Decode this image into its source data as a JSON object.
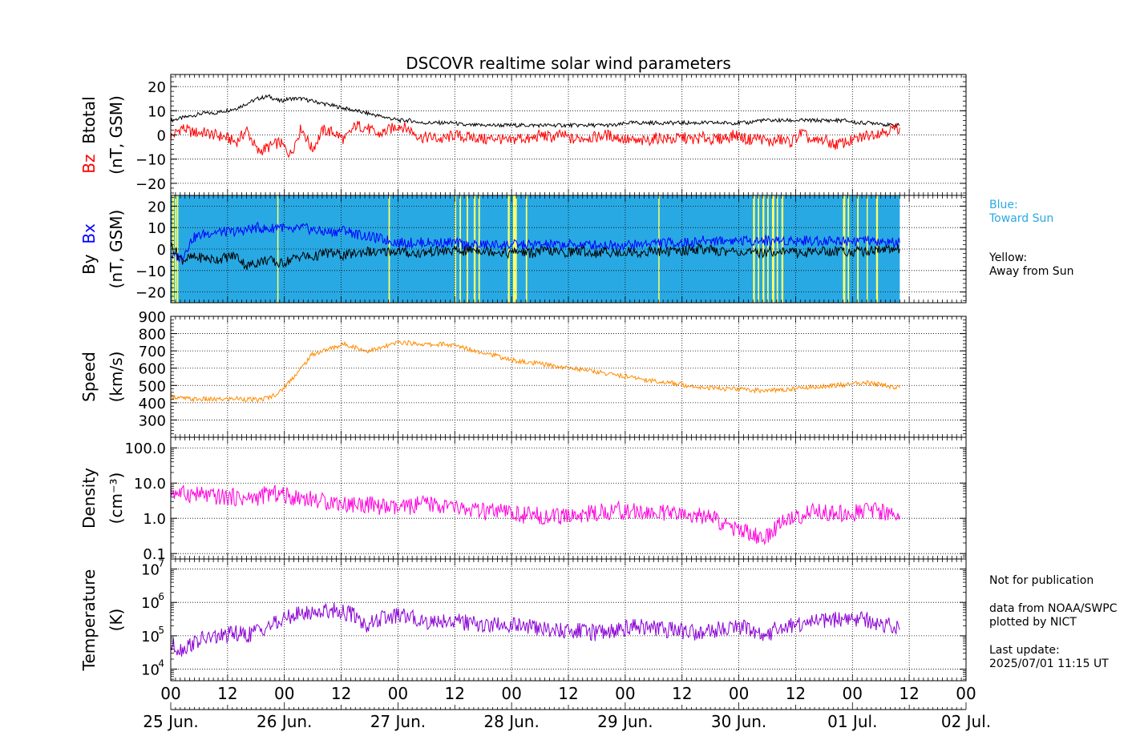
{
  "chart_data": {
    "type": "line",
    "title": "DSCOVR realtime solar wind parameters",
    "x_axis": {
      "start": "2025-06-25T00:00",
      "end": "2025-07-02T00:00",
      "hour_ticks": [
        "00",
        "12",
        "00",
        "12",
        "00",
        "12",
        "00",
        "12",
        "00",
        "12",
        "00",
        "12",
        "00",
        "12",
        "00"
      ],
      "day_labels": [
        "25 Jun.",
        "26 Jun.",
        "27 Jun.",
        "28 Jun.",
        "29 Jun.",
        "30 Jun.",
        "01 Jul.",
        "02 Jul."
      ],
      "grid": true
    },
    "panels": [
      {
        "id": "btotal-bz",
        "ylabel_series": [
          {
            "text": "Bz",
            "color": "#ff0000"
          },
          {
            "text": "Btotal",
            "color": "#000000"
          }
        ],
        "ylabel_units": "(nT, GSM)",
        "ylim": [
          -25,
          25
        ],
        "scale": "linear",
        "ticks": [
          20,
          10,
          0,
          -10,
          -20
        ],
        "tick_labels": [
          "20",
          "10",
          "0",
          "−10",
          "−20"
        ],
        "series": [
          {
            "key": "Btotal",
            "color": "#000000",
            "values": [
              6,
              7,
              8,
              9,
              9,
              10,
              11,
              13,
              15,
              16,
              14,
              15,
              15,
              14,
              13,
              12,
              11,
              10,
              9,
              8,
              7,
              6,
              6,
              5,
              5,
              5,
              5,
              4,
              4,
              4,
              4,
              4,
              4,
              4,
              4,
              4,
              4,
              4,
              4,
              4,
              4,
              4,
              5,
              5,
              5,
              5,
              5,
              5,
              5,
              5,
              5,
              5,
              5,
              5,
              6,
              6,
              6,
              6,
              6,
              6,
              6,
              6,
              6,
              5,
              5,
              5,
              4,
              4
            ]
          },
          {
            "key": "Bz",
            "color": "#ff0000",
            "values": [
              -1,
              3,
              1,
              1,
              0,
              -1,
              -3,
              2,
              -7,
              -5,
              -3,
              -8,
              3,
              -6,
              2,
              1,
              -2,
              4,
              3,
              0,
              2,
              4,
              2,
              -1,
              -1,
              -2,
              0,
              -1,
              -1,
              -2,
              -1,
              -3,
              -1,
              -2,
              0,
              -1,
              0,
              -2,
              -1,
              -1,
              0,
              -1,
              -2,
              -3,
              -2,
              -1,
              -2,
              -1,
              -2,
              -1,
              -2,
              -1,
              0,
              -2,
              -1,
              -3,
              -2,
              -3,
              1,
              -3,
              -2,
              -4,
              -3,
              -2,
              0,
              1,
              2,
              3
            ]
          }
        ]
      },
      {
        "id": "by-bx",
        "ylabel_series": [
          {
            "text": "By",
            "color": "#000000"
          },
          {
            "text": "Bx",
            "color": "#0000ff"
          }
        ],
        "ylabel_units": "(nT, GSM)",
        "ylim": [
          -25,
          25
        ],
        "scale": "linear",
        "ticks": [
          20,
          10,
          0,
          -10,
          -20
        ],
        "tick_labels": [
          "20",
          "10",
          "0",
          "−10",
          "−20"
        ],
        "background": {
          "toward_color": "#29a9e3",
          "away_color": "#ffff66",
          "end_hours": 154
        },
        "away_intervals_hours": [
          [
            0.3,
            0.7
          ],
          [
            0.9,
            1.2
          ],
          [
            1.3,
            1.6
          ],
          [
            22.5,
            22.7
          ],
          [
            46,
            46.3
          ],
          [
            60,
            60.3
          ],
          [
            61,
            61.3
          ],
          [
            62.5,
            62.8
          ],
          [
            64,
            64.4
          ],
          [
            65,
            65.3
          ],
          [
            71.2,
            71.6
          ],
          [
            72.3,
            73.1
          ],
          [
            75,
            75.3
          ],
          [
            103,
            103.2
          ],
          [
            123,
            123.4
          ],
          [
            124,
            124.3
          ],
          [
            125,
            125.4
          ],
          [
            126,
            126.3
          ],
          [
            127,
            127.5
          ],
          [
            128,
            128.3
          ],
          [
            129,
            129.4
          ],
          [
            142,
            142.5
          ],
          [
            143,
            143.3
          ],
          [
            145,
            145.3
          ],
          [
            147,
            147.2
          ],
          [
            149,
            149.4
          ]
        ],
        "series": [
          {
            "key": "Bx",
            "color": "#0000ff",
            "values": [
              -3,
              -4,
              5,
              7,
              8,
              8,
              8,
              9,
              10,
              9,
              11,
              8,
              10,
              9,
              8,
              8,
              9,
              7,
              6,
              5,
              4,
              3,
              3,
              3,
              3,
              3,
              3,
              2,
              2,
              2,
              2,
              2,
              2,
              2,
              2,
              2,
              2,
              2,
              2,
              2,
              2,
              2,
              2,
              2,
              3,
              3,
              3,
              3,
              3,
              4,
              4,
              4,
              4,
              4,
              4,
              4,
              4,
              4,
              4,
              4,
              4,
              4,
              4,
              4,
              4,
              3,
              3,
              3
            ]
          },
          {
            "key": "By",
            "color": "#000000",
            "values": [
              2,
              -5,
              -4,
              -4,
              -5,
              -4,
              -3,
              -8,
              -6,
              -5,
              -7,
              -5,
              -3,
              -4,
              -2,
              -2,
              -3,
              -2,
              -1,
              -2,
              -1,
              -1,
              -2,
              -2,
              -1,
              -1,
              -1,
              -1,
              0,
              -1,
              -1,
              -2,
              -1,
              -2,
              -1,
              -1,
              -2,
              -1,
              -1,
              -2,
              -1,
              -2,
              -1,
              -2,
              -1,
              -1,
              -1,
              -1,
              0,
              0,
              -1,
              -1,
              -1,
              -2,
              -2,
              -1,
              -1,
              -1,
              -2,
              -1,
              -1,
              -1,
              -1,
              -1,
              -1,
              0,
              0,
              0
            ]
          }
        ],
        "legend_notes": [
          "Blue:\nToward Sun",
          "Yellow:\nAway from Sun"
        ]
      },
      {
        "id": "speed",
        "ylabel_series": [
          {
            "text": "Speed",
            "color": "#000000"
          }
        ],
        "ylabel_units": "(km/s)",
        "ylim": [
          200,
          900
        ],
        "scale": "linear",
        "ticks": [
          900,
          800,
          700,
          600,
          500,
          400,
          300
        ],
        "tick_labels": [
          "900",
          "800",
          "700",
          "600",
          "500",
          "400",
          "300"
        ],
        "series": [
          {
            "key": "Speed",
            "color": "#ff8c00",
            "values": [
              440,
              425,
              420,
              420,
              418,
              420,
              425,
              420,
              415,
              430,
              460,
              530,
              600,
              680,
              700,
              720,
              740,
              720,
              700,
              710,
              730,
              750,
              745,
              740,
              735,
              740,
              730,
              720,
              700,
              690,
              670,
              650,
              640,
              630,
              625,
              615,
              605,
              600,
              590,
              580,
              570,
              560,
              550,
              540,
              530,
              520,
              515,
              505,
              495,
              490,
              485,
              480,
              478,
              475,
              472,
              470,
              475,
              480,
              485,
              490,
              495,
              500,
              505,
              510,
              515,
              505,
              495,
              485
            ]
          }
        ]
      },
      {
        "id": "density",
        "ylabel_series": [
          {
            "text": "Density",
            "color": "#000000"
          }
        ],
        "ylabel_units": "(cm⁻³)",
        "ylim": [
          0.07,
          200
        ],
        "scale": "log",
        "ticks": [
          100,
          10,
          1,
          0.1
        ],
        "tick_labels": [
          "100.0",
          "10.0",
          "1.0",
          "0.1"
        ],
        "series": [
          {
            "key": "Density",
            "color": "#ff00dd",
            "values": [
              6,
              5,
              5,
              4.5,
              4,
              4,
              4,
              3.5,
              4,
              5,
              5,
              4,
              4,
              3.5,
              3,
              3,
              2.5,
              2.5,
              2.5,
              2.2,
              2,
              1.8,
              2.2,
              2.5,
              2.5,
              2.2,
              2,
              1.8,
              1.6,
              1.5,
              1.5,
              1.4,
              1.3,
              1.2,
              1.2,
              1.1,
              1.1,
              1.2,
              1.3,
              1.4,
              1.6,
              1.7,
              1.6,
              1.5,
              1.4,
              1.4,
              1.3,
              1.2,
              1.2,
              1.1,
              1.0,
              0.6,
              0.5,
              0.4,
              0.3,
              0.3,
              0.8,
              1.0,
              1.2,
              1.5,
              1.6,
              1.4,
              1.3,
              1.5,
              1.8,
              1.6,
              1.4,
              1.2
            ]
          }
        ]
      },
      {
        "id": "temperature",
        "ylabel_series": [
          {
            "text": "Temperature",
            "color": "#000000"
          }
        ],
        "ylabel_units": "(K)",
        "ylim": [
          4500,
          20000000
        ],
        "scale": "log",
        "ticks": [
          10000000,
          1000000,
          100000,
          10000
        ],
        "tick_labels": [
          "10",
          "10",
          "10",
          "10"
        ],
        "tick_exponents": [
          "7",
          "6",
          "5",
          "4"
        ],
        "series": [
          {
            "key": "Temperature",
            "color": "#8a00d4",
            "values": [
              50000,
              40000,
              60000,
              80000,
              90000,
              100000,
              120000,
              100000,
              150000,
              200000,
              250000,
              400000,
              450000,
              500000,
              550000,
              600000,
              500000,
              400000,
              200000,
              300000,
              350000,
              400000,
              350000,
              300000,
              250000,
              300000,
              280000,
              250000,
              220000,
              200000,
              220000,
              210000,
              200000,
              180000,
              160000,
              150000,
              140000,
              130000,
              150000,
              120000,
              140000,
              160000,
              180000,
              200000,
              180000,
              160000,
              150000,
              140000,
              130000,
              120000,
              150000,
              180000,
              200000,
              160000,
              100000,
              120000,
              180000,
              200000,
              220000,
              250000,
              280000,
              300000,
              320000,
              330000,
              300000,
              250000,
              200000,
              150000
            ]
          }
        ]
      }
    ]
  },
  "side_notes": {
    "blue": "Blue:\nToward Sun",
    "yellow": "Yellow:\nAway from Sun",
    "publication": "Not for publication",
    "source": "data from NOAA/SWPC\nplotted by NICT",
    "update": "Last update:\n2025/07/01 11:15 UT"
  },
  "colors": {
    "toward": "#29a9e3",
    "away": "#ffff66"
  }
}
